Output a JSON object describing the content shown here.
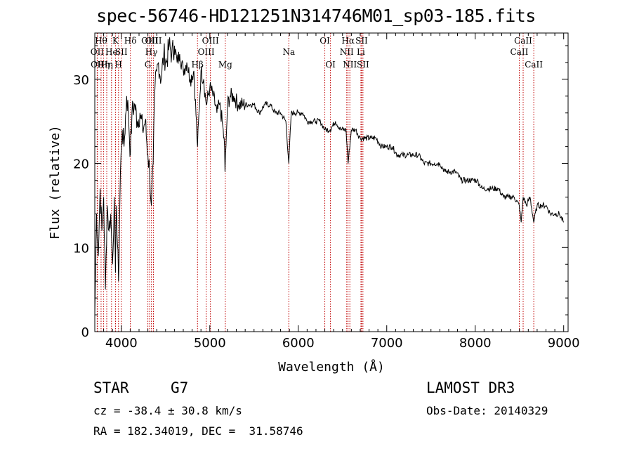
{
  "chart_data": {
    "type": "line",
    "title": "spec-56746-HD121251N314746M01_sp03-185.fits",
    "xlabel": "Wavelength (Å)",
    "ylabel": "Flux (relative)",
    "xlim": [
      3700,
      9050
    ],
    "ylim": [
      0,
      35.5
    ],
    "xticks": [
      4000,
      5000,
      6000,
      7000,
      8000,
      9000
    ],
    "yticks": [
      0,
      10,
      20,
      30
    ],
    "series": [
      {
        "name": "spectrum",
        "x": [
          3700,
          3720,
          3740,
          3760,
          3780,
          3800,
          3820,
          3840,
          3860,
          3880,
          3900,
          3920,
          3933,
          3945,
          3968,
          3990,
          4010,
          4030,
          4060,
          4080,
          4102,
          4120,
          4150,
          4180,
          4210,
          4240,
          4270,
          4300,
          4320,
          4340,
          4360,
          4380,
          4400,
          4420,
          4450,
          4480,
          4510,
          4540,
          4570,
          4600,
          4630,
          4660,
          4700,
          4740,
          4780,
          4820,
          4861,
          4900,
          4930,
          4960,
          5000,
          5040,
          5080,
          5110,
          5140,
          5167,
          5172,
          5183,
          5200,
          5230,
          5270,
          5320,
          5380,
          5440,
          5500,
          5560,
          5620,
          5680,
          5740,
          5800,
          5860,
          5893,
          5920,
          5960,
          6000,
          6050,
          6100,
          6150,
          6200,
          6250,
          6300,
          6360,
          6420,
          6480,
          6540,
          6563,
          6600,
          6650,
          6700,
          6760,
          6820,
          6880,
          6940,
          7000,
          7060,
          7120,
          7180,
          7240,
          7300,
          7360,
          7420,
          7480,
          7540,
          7600,
          7660,
          7720,
          7780,
          7840,
          7900,
          7960,
          8020,
          8080,
          8140,
          8200,
          8260,
          8320,
          8380,
          8440,
          8498,
          8520,
          8542,
          8580,
          8620,
          8662,
          8700,
          8750,
          8800,
          8850,
          8900,
          8950,
          9000
        ],
        "y": [
          2,
          14,
          9,
          17,
          12,
          16,
          5,
          15,
          12,
          14,
          8,
          16,
          7,
          15,
          6,
          19,
          24,
          22,
          28,
          26,
          21,
          26,
          27,
          25,
          26,
          24,
          25,
          21,
          19,
          15,
          20,
          29,
          31,
          32,
          30,
          33,
          32,
          34,
          33,
          34,
          32,
          33,
          31,
          32,
          30,
          31,
          22,
          31,
          30,
          27,
          29,
          28,
          26,
          27,
          25,
          22,
          19,
          22,
          27,
          28,
          28,
          27,
          27,
          27,
          27,
          26,
          27,
          27,
          26,
          26,
          25,
          20,
          26,
          26,
          26,
          26,
          25,
          25,
          25,
          25,
          24,
          24,
          25,
          24,
          24,
          20,
          24,
          24,
          23,
          23,
          23,
          23,
          22,
          22,
          22,
          21,
          21,
          21,
          21,
          21,
          20,
          20,
          20,
          20,
          19,
          19,
          19,
          18,
          18,
          18,
          18,
          17,
          17,
          17,
          17,
          16,
          16,
          16,
          15,
          13,
          16,
          15,
          16,
          13,
          15,
          15,
          15,
          14,
          14,
          14,
          13
        ]
      }
    ],
    "lines": [
      {
        "wavelength": 3727,
        "label": "OII",
        "row": 2
      },
      {
        "wavelength": 3730,
        "label": "OII",
        "row": 3
      },
      {
        "wavelength": 3771,
        "label": "Hθ",
        "row": 1
      },
      {
        "wavelength": 3798,
        "label": "Hη",
        "row": 3
      },
      {
        "wavelength": 3835,
        "label": "Hη",
        "row": 3
      },
      {
        "wavelength": 3889,
        "label": "He",
        "row": 2
      },
      {
        "wavelength": 3934,
        "label": "K",
        "row": 1
      },
      {
        "wavelength": 3968,
        "label": "H",
        "row": 3
      },
      {
        "wavelength": 4000,
        "label": "SII",
        "row": 2
      },
      {
        "wavelength": 4102,
        "label": "Hδ",
        "row": 1
      },
      {
        "wavelength": 4320,
        "label": "OIII",
        "row": 1
      },
      {
        "wavelength": 4300,
        "label": "G",
        "row": 3
      },
      {
        "wavelength": 4340,
        "label": "Hγ",
        "row": 2
      },
      {
        "wavelength": 4363,
        "label": "OIII",
        "row": 1
      },
      {
        "wavelength": 4861,
        "label": "Hβ",
        "row": 3
      },
      {
        "wavelength": 4959,
        "label": "OIII",
        "row": 2
      },
      {
        "wavelength": 5007,
        "label": "OIII",
        "row": 1
      },
      {
        "wavelength": 5175,
        "label": "Mg",
        "row": 3
      },
      {
        "wavelength": 5893,
        "label": "Na",
        "row": 2
      },
      {
        "wavelength": 6300,
        "label": "OI",
        "row": 1
      },
      {
        "wavelength": 6364,
        "label": "OI",
        "row": 3
      },
      {
        "wavelength": 6548,
        "label": "NII",
        "row": 2
      },
      {
        "wavelength": 6563,
        "label": "Hα",
        "row": 1
      },
      {
        "wavelength": 6583,
        "label": "NII",
        "row": 3
      },
      {
        "wavelength": 6708,
        "label": "Li",
        "row": 2
      },
      {
        "wavelength": 6716,
        "label": "SII",
        "row": 1
      },
      {
        "wavelength": 6731,
        "label": "SII",
        "row": 3
      },
      {
        "wavelength": 8498,
        "label": "CaII",
        "row": 2
      },
      {
        "wavelength": 8542,
        "label": "CaII",
        "row": 1
      },
      {
        "wavelength": 8662,
        "label": "CaII",
        "row": 3
      }
    ]
  },
  "footer": {
    "class_label": "STAR",
    "subclass": "G7",
    "survey": "LAMOST DR3",
    "redshift": "cz = -38.4 ± 30.8 km/s",
    "obs_date": "Obs-Date: 20140329",
    "coords": "RA = 182.34019, DEC =  31.58746"
  },
  "colors": {
    "spectrum": "#000000",
    "line_markers": "#c00000"
  }
}
